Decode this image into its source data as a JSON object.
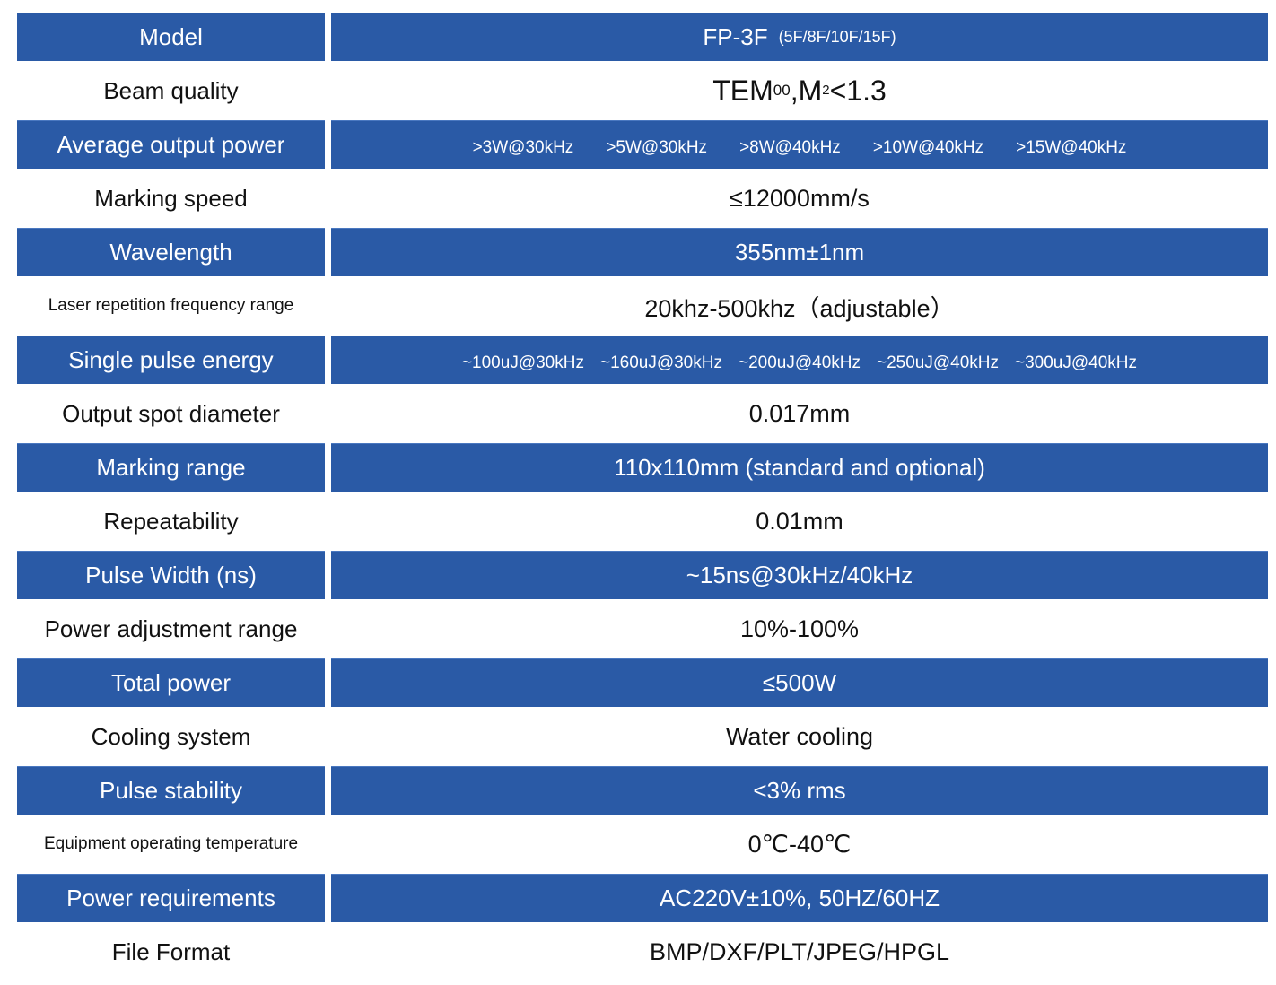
{
  "rows": [
    {
      "label": "Model",
      "value": "FP-3F",
      "value_suffix": "(5F/8F/10F/15F)"
    },
    {
      "label": "Beam quality",
      "value_main": "TEM",
      "value_sub": "00",
      "value_mid": ",M",
      "value_sup": "2",
      "value_end": "<1.3"
    },
    {
      "label": "Average output power",
      "values": [
        ">3W@30kHz",
        ">5W@30kHz",
        ">8W@40kHz",
        ">10W@40kHz",
        ">15W@40kHz"
      ]
    },
    {
      "label": "Marking speed",
      "value": "≤12000mm/s"
    },
    {
      "label": "Wavelength",
      "value": "355nm±1nm"
    },
    {
      "label": "Laser repetition frequency range",
      "value": "20khz-500khz（adjustable）"
    },
    {
      "label": "Single pulse energy",
      "values": [
        "~100uJ@30kHz",
        "~160uJ@30kHz",
        "~200uJ@40kHz",
        "~250uJ@40kHz",
        "~300uJ@40kHz"
      ]
    },
    {
      "label": "Output spot diameter",
      "value": "0.017mm"
    },
    {
      "label": "Marking range",
      "value": "110x110mm (standard and optional)"
    },
    {
      "label": "Repeatability",
      "value": "0.01mm"
    },
    {
      "label": "Pulse Width (ns)",
      "value": "~15ns@30kHz/40kHz"
    },
    {
      "label": "Power adjustment range",
      "value": "10%-100%"
    },
    {
      "label": "Total power",
      "value": "≤500W"
    },
    {
      "label": "Cooling system",
      "value": "Water cooling"
    },
    {
      "label": "Pulse stability",
      "value": "<3% rms"
    },
    {
      "label": "Equipment operating temperature",
      "value": "0℃-40℃"
    },
    {
      "label": "Power requirements",
      "value": "AC220V±10%, 50HZ/60HZ"
    },
    {
      "label": "File Format",
      "value": "BMP/DXF/PLT/JPEG/HPGL"
    }
  ],
  "colors": {
    "header_blue": "#2a5aa6",
    "text_dark": "#111111",
    "text_light": "#ffffff"
  }
}
